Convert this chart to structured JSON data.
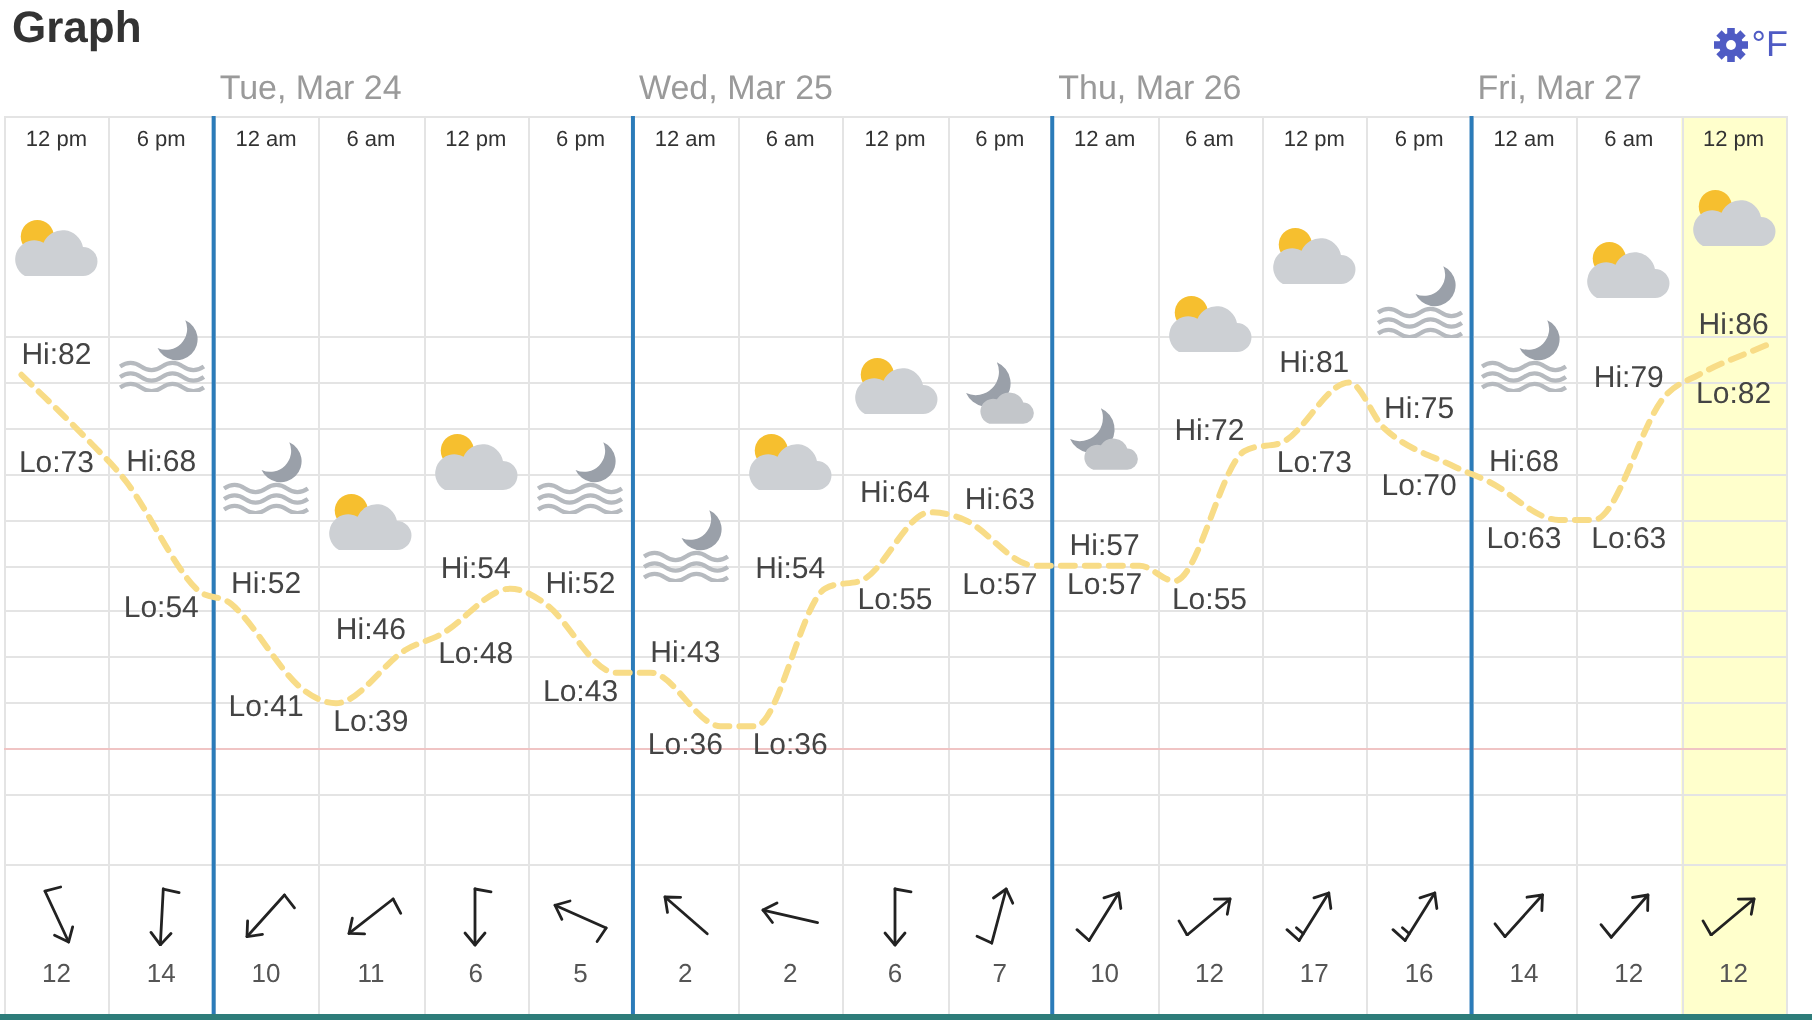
{
  "chart_data": [
    {
      "type": "line",
      "title": "Graph",
      "categories": [
        null,
        "12 pm",
        null,
        null,
        "6 pm",
        null,
        null,
        "12 am",
        null,
        null,
        "6 am",
        null,
        null,
        "12 pm",
        null,
        null,
        "6 pm",
        null,
        null,
        "12 am",
        null,
        null,
        "6 am",
        null,
        null,
        "12 pm",
        null,
        null,
        "6 pm",
        null,
        null,
        "12 am",
        null,
        null,
        "6 am",
        null,
        null,
        "12 pm",
        null,
        null,
        "6 pm",
        null,
        null,
        "12 am",
        null,
        null,
        "6 am",
        null,
        null,
        "12 pm",
        null
      ],
      "series": [
        {
          "color": "#f8dc87",
          "values": [
            82,
            null,
            73,
            68,
            null,
            54,
            52,
            null,
            41,
            39,
            null,
            46,
            48,
            null,
            54,
            52,
            null,
            43,
            43,
            null,
            36,
            36,
            null,
            54,
            55,
            null,
            64,
            63,
            null,
            57,
            57,
            null,
            57,
            55,
            null,
            72,
            73,
            null,
            81,
            75,
            null,
            70,
            68,
            null,
            63,
            63,
            null,
            79,
            82,
            null,
            86
          ],
          "value_labels": [
            "Hi:82",
            null,
            "Lo:73",
            "Hi:68",
            null,
            "Lo:54",
            "Hi:52",
            null,
            "Lo:41",
            "Lo:39",
            null,
            "Hi:46",
            "Lo:48",
            null,
            "Hi:54",
            "Hi:52",
            null,
            "Lo:43",
            "Hi:43",
            null,
            "Lo:36",
            "Lo:36",
            null,
            "Hi:54",
            "Lo:55",
            null,
            "Hi:64",
            "Hi:63",
            null,
            "Lo:57",
            "Hi:57",
            null,
            "Lo:57",
            "Lo:55",
            null,
            "Hi:72",
            "Lo:73",
            null,
            "Hi:81",
            "Hi:75",
            null,
            "Lo:70",
            "Hi:68",
            null,
            "Lo:63",
            "Lo:63",
            null,
            "Hi:79",
            "Lo:82",
            null,
            "Hi:86"
          ]
        }
      ],
      "line_style": "dashed",
      "annotations": [
        "Tue, Mar 24",
        "Wed, Mar 25",
        "Thu, Mar 26",
        "Fri, Mar 27",
        "°F"
      ],
      "grid": true
    },
    {
      "type": "other",
      "values": [
        12,
        14,
        10,
        11,
        6,
        5,
        2,
        2,
        6,
        7,
        10,
        12,
        17,
        16,
        14,
        12,
        12
      ],
      "data_labels": true
    }
  ]
}
